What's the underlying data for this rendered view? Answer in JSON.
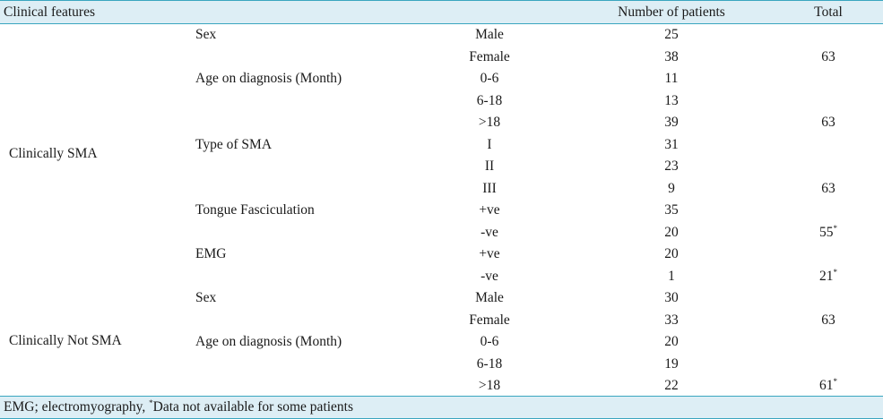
{
  "columns": {
    "clinical_features": "Clinical features",
    "number_of_patients": "Number of patients",
    "total": "Total"
  },
  "groups": [
    {
      "label": "Clinically SMA"
    },
    {
      "label": "Clinically Not SMA"
    }
  ],
  "rows": [
    {
      "feature": "Sex",
      "category": "Male",
      "number": "25",
      "total": "",
      "total_mark": ""
    },
    {
      "feature": "",
      "category": "Female",
      "number": "38",
      "total": "63",
      "total_mark": ""
    },
    {
      "feature": "Age on diagnosis (Month)",
      "category": "0-6",
      "number": "11",
      "total": "",
      "total_mark": ""
    },
    {
      "feature": "",
      "category": "6-18",
      "number": "13",
      "total": "",
      "total_mark": ""
    },
    {
      "feature": "",
      "category": ">18",
      "number": "39",
      "total": "63",
      "total_mark": ""
    },
    {
      "feature": "Type of SMA",
      "category": "I",
      "number": "31",
      "total": "",
      "total_mark": ""
    },
    {
      "feature": "",
      "category": "II",
      "number": "23",
      "total": "",
      "total_mark": ""
    },
    {
      "feature": "",
      "category": "III",
      "number": "9",
      "total": "63",
      "total_mark": ""
    },
    {
      "feature": "Tongue Fasciculation",
      "category": "+ve",
      "number": "35",
      "total": "",
      "total_mark": ""
    },
    {
      "feature": "",
      "category": "-ve",
      "number": "20",
      "total": "55",
      "total_mark": "*"
    },
    {
      "feature": "EMG",
      "category": "+ve",
      "number": "20",
      "total": "",
      "total_mark": ""
    },
    {
      "feature": "",
      "category": "-ve",
      "number": "1",
      "total": "21",
      "total_mark": "*"
    },
    {
      "feature": "Sex",
      "category": "Male",
      "number": "30",
      "total": "",
      "total_mark": ""
    },
    {
      "feature": "",
      "category": "Female",
      "number": "33",
      "total": "63",
      "total_mark": ""
    },
    {
      "feature": "Age on diagnosis (Month)",
      "category": "0-6",
      "number": "20",
      "total": "",
      "total_mark": ""
    },
    {
      "feature": "",
      "category": "6-18",
      "number": "19",
      "total": "",
      "total_mark": ""
    },
    {
      "feature": "",
      "category": ">18",
      "number": "22",
      "total": "61",
      "total_mark": "*"
    }
  ],
  "footnote": {
    "text_before": "EMG; electromyography, ",
    "mark": "*",
    "text_after": "Data not available for some patients"
  }
}
